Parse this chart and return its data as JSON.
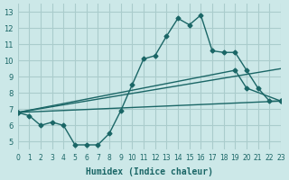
{
  "xlabel": "Humidex (Indice chaleur)",
  "ylabel": "",
  "bg_color": "#cce8e8",
  "grid_color": "#aacccc",
  "line_color": "#1a6666",
  "xlim": [
    0,
    23
  ],
  "ylim": [
    4.5,
    13.5
  ],
  "xticks": [
    0,
    1,
    2,
    3,
    4,
    5,
    6,
    7,
    8,
    9,
    10,
    11,
    12,
    13,
    14,
    15,
    16,
    17,
    18,
    19,
    20,
    21,
    22,
    23
  ],
  "yticks": [
    5,
    6,
    7,
    8,
    9,
    10,
    11,
    12,
    13
  ],
  "series": [
    {
      "x": [
        0,
        1,
        2,
        3,
        4,
        5,
        6,
        7,
        8,
        9,
        10,
        11,
        12,
        13,
        14,
        15,
        16,
        17,
        18,
        19,
        20,
        21,
        22,
        23
      ],
      "y": [
        6.8,
        6.6,
        6.0,
        6.2,
        6.0,
        4.8,
        4.8,
        4.8,
        5.5,
        6.9,
        8.5,
        10.1,
        10.3,
        11.5,
        12.6,
        12.2,
        12.8,
        10.6,
        10.5,
        10.5,
        9.4,
        8.3,
        7.5,
        7.5
      ]
    },
    {
      "x": [
        0,
        23
      ],
      "y": [
        6.8,
        7.5
      ]
    },
    {
      "x": [
        0,
        19,
        20,
        23
      ],
      "y": [
        6.8,
        9.4,
        8.3,
        7.5
      ]
    },
    {
      "x": [
        0,
        23
      ],
      "y": [
        6.8,
        9.5
      ]
    }
  ]
}
